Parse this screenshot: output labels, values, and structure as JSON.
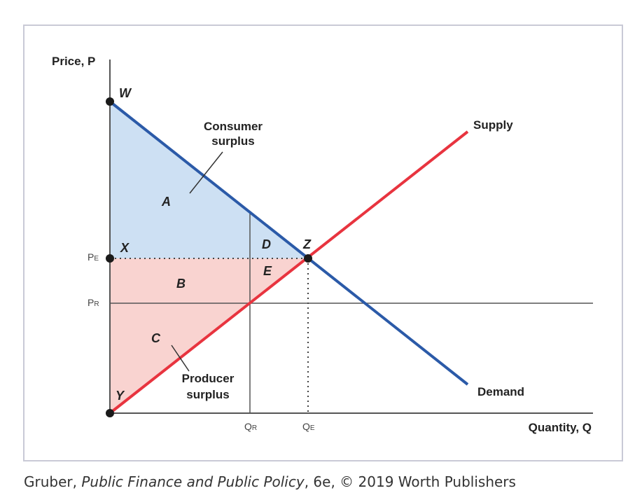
{
  "axes": {
    "y_label": "Price, P",
    "x_label": "Quantity, Q"
  },
  "curves": {
    "supply": "Supply",
    "demand": "Demand"
  },
  "points": {
    "w": "W",
    "x": "X",
    "y": "Y",
    "z": "Z"
  },
  "areas": {
    "a": "A",
    "b": "B",
    "c": "C",
    "d": "D",
    "e": "E"
  },
  "surplus_labels": {
    "consumer_line1": "Consumer",
    "consumer_line2": "surplus",
    "producer_line1": "Producer",
    "producer_line2": "surplus"
  },
  "ticks": {
    "pe": "P",
    "pe_sub": "E",
    "pr": "P",
    "pr_sub": "R",
    "qr": "Q",
    "qr_sub": "R",
    "qe": "Q",
    "qe_sub": "E"
  },
  "caption": {
    "author": "Gruber, ",
    "title": "Public Finance and Public Policy",
    "rest": ", 6e, © 2019 Worth Publishers"
  },
  "colors": {
    "consumer_fill": "#cde0f3",
    "producer_fill": "#f9d3d0",
    "demand_line": "#2b5aa8",
    "supply_line": "#e8343f",
    "frame": "#c9cad6"
  }
}
